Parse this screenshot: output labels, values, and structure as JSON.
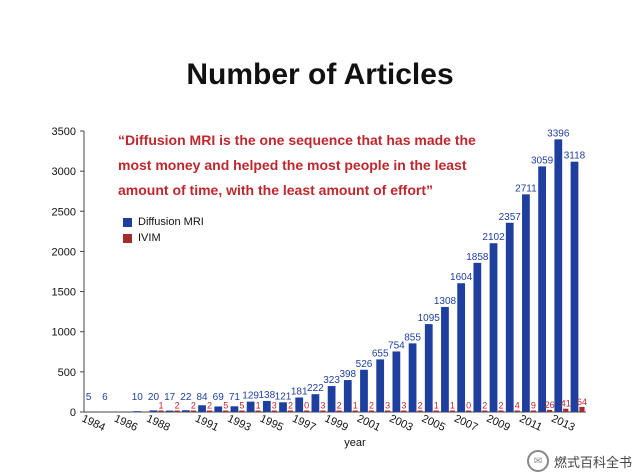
{
  "slide": {
    "title": "Number of Articles",
    "quote": [
      "“Diffusion MRI is the one sequence that has made the",
      "most money and helped the most people in the least",
      "amount of time, with the least amount of effort”"
    ],
    "watermark": "燃式百科全书"
  },
  "chart_data": {
    "type": "bar",
    "title": "",
    "xlabel": "year",
    "ylabel": "",
    "ylim": [
      0,
      3500
    ],
    "yticks": [
      0,
      500,
      1000,
      1500,
      2000,
      2500,
      3000,
      3500
    ],
    "grid": false,
    "legend_position": "top-left",
    "categories": [
      "1984",
      "1985",
      "1986",
      "1987",
      "1988",
      "1989",
      "1990",
      "1991",
      "1992",
      "1993",
      "1994",
      "1995",
      "1996",
      "1997",
      "1998",
      "1999",
      "2000",
      "2001",
      "2002",
      "2003",
      "2004",
      "2005",
      "2006",
      "2007",
      "2008",
      "2009",
      "2010",
      "2011",
      "2012",
      "2013",
      "2014"
    ],
    "xtick_labels": [
      "1984",
      "1986",
      "1988",
      "1991",
      "1993",
      "1995",
      "1997",
      "1999",
      "2001",
      "2003",
      "2005",
      "2007",
      "2009",
      "2011",
      "2013"
    ],
    "series": [
      {
        "name": "Diffusion MRI",
        "color": "#1f3f9e",
        "values": [
          5,
          6,
          null,
          10,
          20,
          17,
          22,
          84,
          69,
          71,
          129,
          138,
          121,
          181,
          222,
          323,
          398,
          526,
          655,
          754,
          855,
          1095,
          1308,
          1604,
          1858,
          2102,
          2357,
          2711,
          3059,
          3396,
          3118
        ]
      },
      {
        "name": "IVIM",
        "color": "#a52a2a",
        "values": [
          null,
          null,
          null,
          null,
          1,
          2,
          2,
          2,
          5,
          5,
          1,
          3,
          2,
          0,
          3,
          2,
          1,
          2,
          3,
          3,
          2,
          1,
          1,
          0,
          2,
          2,
          4,
          9,
          26,
          41,
          64
        ]
      }
    ]
  }
}
